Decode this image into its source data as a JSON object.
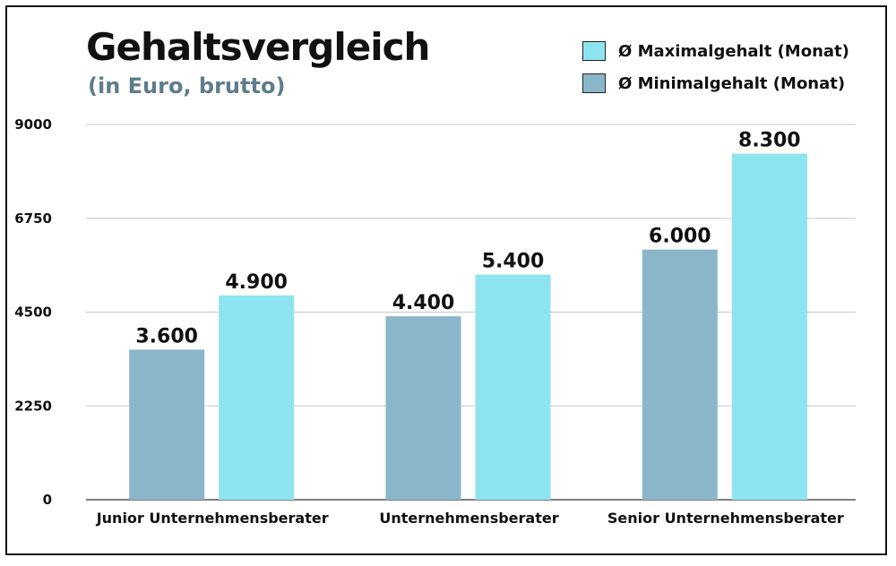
{
  "chart_data": {
    "type": "bar",
    "title": "Gehaltsvergleich",
    "subtitle": "(in Euro, brutto)",
    "categories": [
      "Junior Unternehmensberater",
      "Unternehmensberater",
      "Senior Unternehmensberater"
    ],
    "series": [
      {
        "name": "Ø Minimalgehalt (Monat)",
        "values": [
          3600,
          4400,
          6000
        ],
        "labels": [
          "3.600",
          "4.400",
          "6.000"
        ],
        "color": "#8ab6ca"
      },
      {
        "name": "Ø Maximalgehalt (Monat)",
        "values": [
          4900,
          5400,
          8300
        ],
        "labels": [
          "4.900",
          "5.400",
          "8.300"
        ],
        "color": "#8de4f0"
      }
    ],
    "yticks": [
      "0",
      "2250",
      "4500",
      "6750",
      "9000"
    ],
    "ylim": [
      0,
      9000
    ],
    "grid": true,
    "legend_position": "top-right",
    "legend_order": [
      1,
      0
    ]
  }
}
